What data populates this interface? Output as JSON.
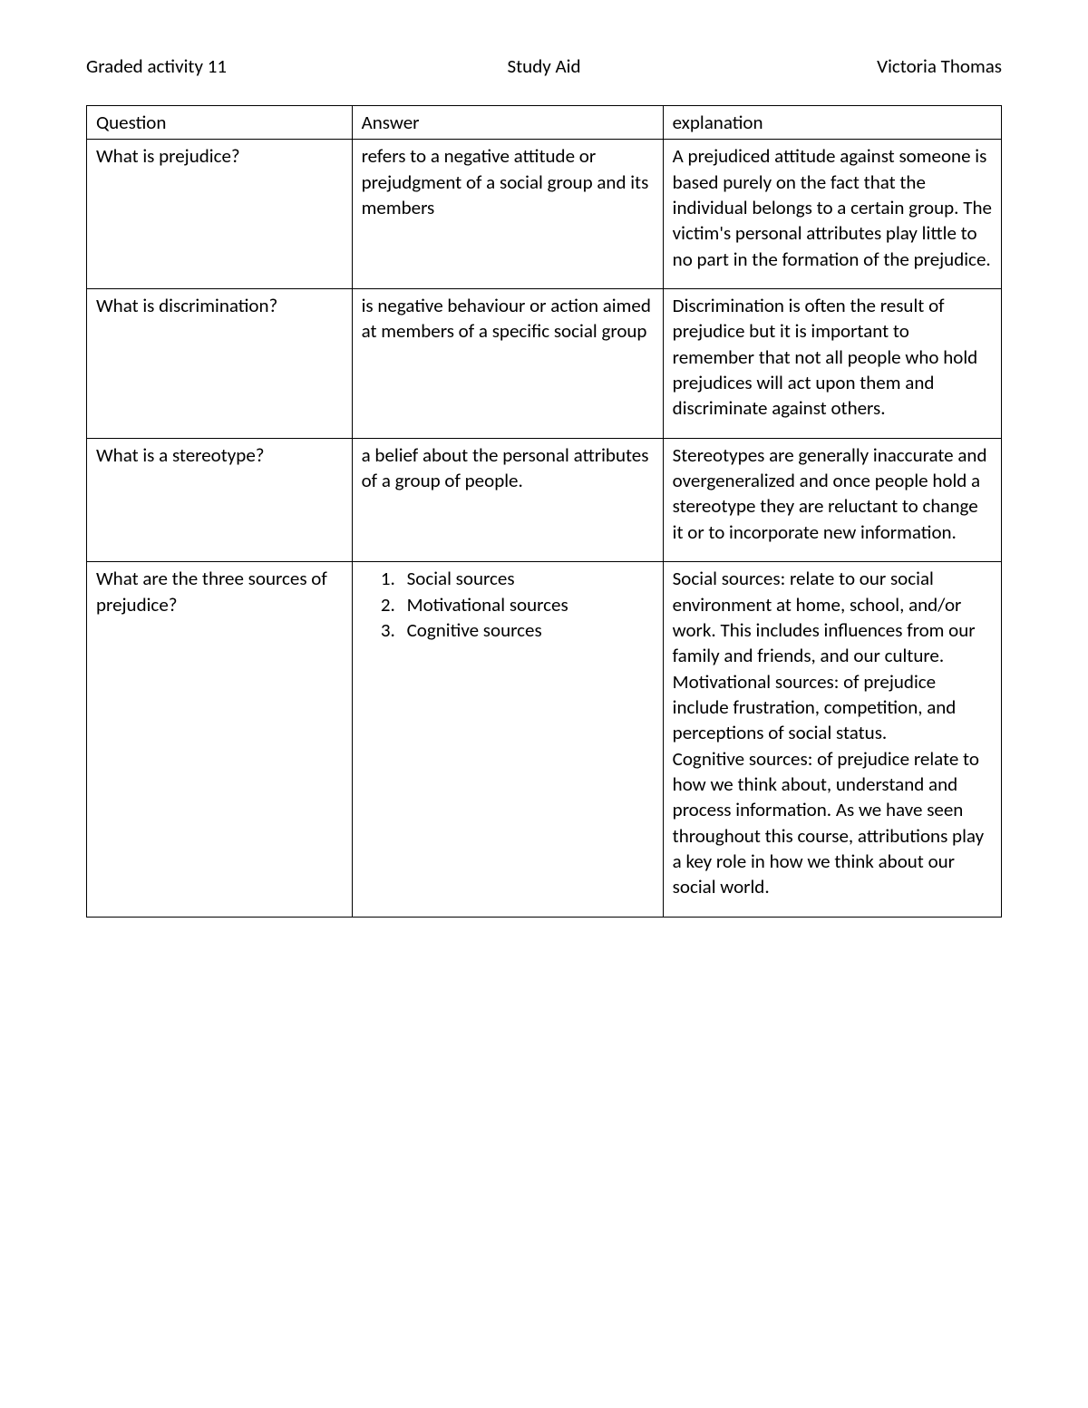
{
  "header": {
    "left": "Graded activity 11",
    "center": "Study Aid",
    "right": "Victoria Thomas"
  },
  "table": {
    "columns": [
      "Question",
      "Answer",
      "explanation"
    ],
    "rows": [
      {
        "question": "What is prejudice?",
        "answer": "refers to a negative attitude or prejudgment of a social group and its members",
        "explanation": "A prejudiced attitude against someone is based purely on the fact that the individual belongs to a certain group. The victim's personal attributes play little to no part in the formation of the prejudice."
      },
      {
        "question": "What is discrimination?",
        "answer": "is negative behaviour or action aimed at members of a specific social group",
        "explanation": "Discrimination is often the result of prejudice but it is important to remember that not all people who hold prejudices will act upon them and discriminate against others."
      },
      {
        "question": "What is a stereotype?",
        "answer": "a belief about the personal attributes of a group of people.",
        "explanation": "Stereotypes are generally inaccurate and overgeneralized and once people hold a stereotype they are reluctant to change it or to incorporate new information."
      },
      {
        "question": "What are the three sources of prejudice?",
        "answer_list": [
          "Social sources",
          "Motivational sources",
          "Cognitive sources"
        ],
        "explanation": " Social sources: relate to our social environment at home, school, and/or work. This includes influences from our family and friends, and our culture.\n Motivational sources: of prejudice include frustration, competition, and perceptions of social status.\nCognitive sources: of prejudice relate to how we think about, understand and process information. As we have seen throughout this course, attributions play a key role in how we think about our social world."
      }
    ]
  }
}
